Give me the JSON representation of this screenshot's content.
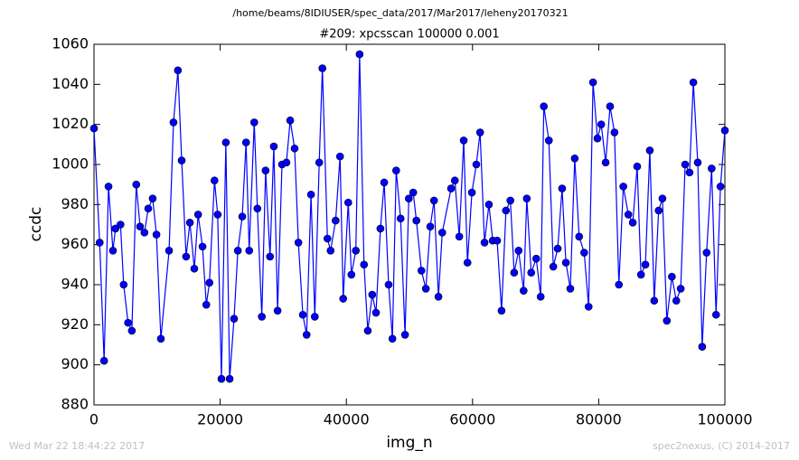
{
  "chart_data": {
    "type": "line",
    "title": "/home/beams/8IDIUSER/spec_data/2017/Mar2017/leheny20170321",
    "subtitle": "#209: xpcsscan 100000 0.001",
    "xlabel": "img_n",
    "ylabel": "ccdc",
    "footer_left": "Wed Mar 22 18:44:22 2017",
    "footer_right": "spec2nexus, (C) 2014-2017",
    "color": "#0000ff",
    "marker": "circle",
    "grid": false,
    "xlim": [
      0,
      100000
    ],
    "xticks": [
      0,
      20000,
      40000,
      60000,
      80000,
      100000
    ],
    "ylim": [
      880,
      1060
    ],
    "yticks": [
      880,
      900,
      920,
      940,
      960,
      980,
      1000,
      1020,
      1040,
      1060
    ],
    "x": [
      0,
      900,
      1600,
      2300,
      3000,
      3400,
      4200,
      4700,
      5400,
      6000,
      6700,
      7300,
      8000,
      8600,
      9300,
      9900,
      10600,
      11900,
      12600,
      13300,
      13900,
      14600,
      15200,
      15900,
      16500,
      17200,
      17800,
      18300,
      19100,
      19600,
      20200,
      20900,
      21500,
      22200,
      22800,
      23500,
      24100,
      24600,
      25400,
      25900,
      26600,
      27200,
      27900,
      28500,
      29100,
      29800,
      30500,
      31100,
      31800,
      32400,
      33100,
      33700,
      34400,
      35000,
      35700,
      36200,
      37000,
      37500,
      38300,
      39000,
      39500,
      40300,
      40800,
      41500,
      42100,
      42800,
      43400,
      44100,
      44700,
      45400,
      46000,
      46700,
      47300,
      47900,
      48600,
      49300,
      49900,
      50600,
      51100,
      51900,
      52600,
      53300,
      53900,
      54600,
      55200,
      56600,
      57200,
      57900,
      58600,
      59200,
      59900,
      60600,
      61200,
      61900,
      62600,
      63200,
      63900,
      64600,
      65300,
      66000,
      66600,
      67300,
      68100,
      68600,
      69300,
      70100,
      70800,
      71300,
      72100,
      72800,
      73500,
      74200,
      74800,
      75500,
      76200,
      76900,
      77700,
      78400,
      79100,
      79800,
      80400,
      81100,
      81800,
      82500,
      83200,
      83900,
      84700,
      85400,
      86100,
      86700,
      87400,
      88100,
      88800,
      89500,
      90100,
      90800,
      91600,
      92300,
      93000,
      93700,
      94400,
      95000,
      95700,
      96400,
      97100,
      97900,
      98600,
      99300,
      100000
    ],
    "values": [
      1018,
      961,
      902,
      989,
      957,
      968,
      970,
      940,
      921,
      917,
      990,
      969,
      966,
      978,
      983,
      965,
      913,
      957,
      1021,
      1047,
      1002,
      954,
      971,
      948,
      975,
      959,
      930,
      941,
      992,
      975,
      893,
      1011,
      893,
      923,
      957,
      974,
      1011,
      957,
      1021,
      978,
      924,
      997,
      954,
      1009,
      927,
      1000,
      1001,
      1022,
      1008,
      961,
      925,
      915,
      985,
      924,
      1001,
      1048,
      963,
      957,
      972,
      1004,
      933,
      981,
      945,
      957,
      1055,
      950,
      917,
      935,
      926,
      968,
      991,
      940,
      913,
      997,
      973,
      915,
      983,
      986,
      972,
      947,
      938,
      969,
      982,
      934,
      966,
      988,
      992,
      964,
      1012,
      951,
      986,
      1000,
      1016,
      961,
      980,
      962,
      962,
      927,
      977,
      982,
      946,
      957,
      937,
      983,
      946,
      953,
      934,
      1029,
      1012,
      949,
      958,
      988,
      951,
      938,
      1003,
      964,
      956,
      929,
      1041,
      1013,
      1020,
      1001,
      1029,
      1016,
      940,
      989,
      975,
      971,
      999,
      945,
      950,
      1007,
      932,
      977,
      983,
      922,
      944,
      932,
      938,
      1000,
      996,
      1041,
      1001,
      909,
      956,
      998,
      925,
      989,
      1017
    ]
  }
}
